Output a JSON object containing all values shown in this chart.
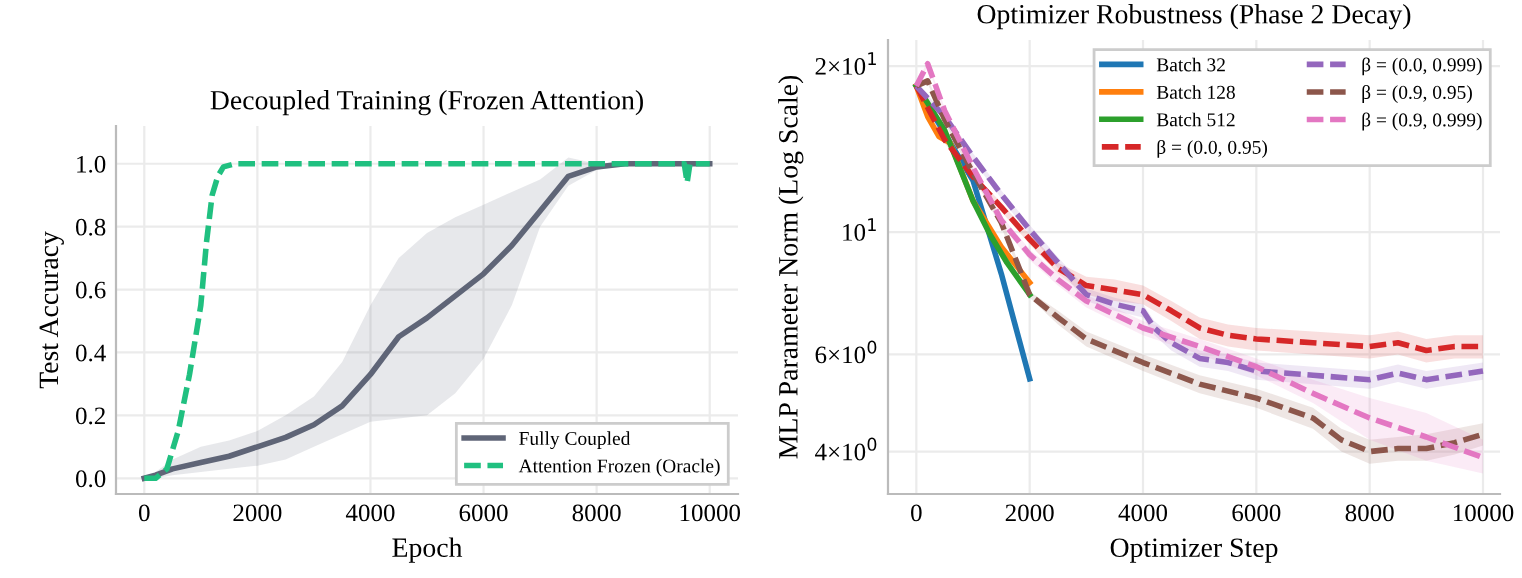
{
  "chart_data": [
    {
      "type": "line",
      "title": "Decoupled Training (Frozen Attention)",
      "xlabel": "Epoch",
      "ylabel": "Test Accuracy",
      "xlim": [
        -500,
        10500
      ],
      "xticks": [
        0,
        2000,
        4000,
        6000,
        8000,
        10000
      ],
      "ylim": [
        -0.05,
        1.12
      ],
      "yticks": [
        {
          "value": 0,
          "label": "0.0"
        },
        0.2,
        0.4,
        0.6,
        0.8,
        {
          "value": 1,
          "label": "1.0"
        }
      ],
      "grid": true,
      "legend": "bottom right",
      "series": [
        {
          "name": "Fully Coupled",
          "color": "#5f6577",
          "line_style": "solid",
          "x": [
            0,
            200,
            500,
            1000,
            1500,
            2000,
            2500,
            3000,
            3500,
            4000,
            4500,
            5000,
            5500,
            6000,
            6500,
            7000,
            7500,
            8000,
            8500,
            9000,
            10000
          ],
          "values": [
            0.0,
            0.01,
            0.03,
            0.05,
            0.07,
            0.1,
            0.13,
            0.17,
            0.23,
            0.33,
            0.45,
            0.51,
            0.58,
            0.65,
            0.74,
            0.85,
            0.96,
            0.99,
            1.0,
            1.0,
            1.0
          ],
          "lower": [
            0.0,
            0.0,
            0.01,
            0.02,
            0.03,
            0.04,
            0.06,
            0.1,
            0.14,
            0.18,
            0.19,
            0.2,
            0.27,
            0.38,
            0.55,
            0.8,
            0.93,
            0.98,
            1.0,
            1.0,
            1.0
          ],
          "upper": [
            0.0,
            0.02,
            0.06,
            0.1,
            0.12,
            0.15,
            0.2,
            0.26,
            0.37,
            0.55,
            0.7,
            0.78,
            0.83,
            0.87,
            0.91,
            0.95,
            1.02,
            1.0,
            1.0,
            1.0,
            1.0
          ]
        },
        {
          "name": "Attention Frozen (Oracle)",
          "color": "#20c080",
          "line_style": "dashed",
          "x": [
            0,
            200,
            400,
            600,
            800,
            1000,
            1100,
            1200,
            1300,
            1400,
            1600,
            9550,
            9600,
            9650,
            10000
          ],
          "values": [
            0.0,
            0.0,
            0.03,
            0.15,
            0.33,
            0.55,
            0.75,
            0.9,
            0.96,
            0.99,
            1.0,
            1.0,
            0.94,
            1.0,
            1.0
          ]
        }
      ]
    },
    {
      "type": "line",
      "title": "Optimizer Robustness (Phase 2 Decay)",
      "xlabel": "Optimizer Step",
      "ylabel": "MLP Parameter Norm (Log Scale)",
      "log": "y",
      "xlim": [
        -500,
        10300
      ],
      "xticks": [
        0,
        2000,
        4000,
        6000,
        8000,
        10000
      ],
      "ylim": [
        3.35,
        22.3
      ],
      "yticks": [
        {
          "value": 4,
          "label": "4×10$^{0}$"
        },
        {
          "value": 6,
          "label": "6×10$^{0}$"
        },
        {
          "value": 10,
          "label": "10$^{1}$"
        },
        {
          "value": 20,
          "label": "2×10$^{1}$"
        }
      ],
      "grid": true,
      "legend": "top right",
      "series": [
        {
          "name": "Batch 32",
          "color": "#1f77b4",
          "line_style": "solid",
          "x": [
            0,
            1000,
            1500,
            2000
          ],
          "values": [
            18.4,
            12.4,
            8.4,
            5.42
          ]
        },
        {
          "name": "Batch 128",
          "color": "#ff7f0e",
          "line_style": "solid",
          "x": [
            0,
            200,
            400,
            600,
            1000,
            1500,
            2000
          ],
          "values": [
            18.4,
            16.2,
            14.9,
            14.5,
            11.4,
            9.4,
            8.1
          ]
        },
        {
          "name": "Batch 512",
          "color": "#2ca02c",
          "line_style": "solid",
          "x": [
            0,
            100,
            500,
            1000,
            1300,
            1600,
            2000
          ],
          "values": [
            18.4,
            17.8,
            15.3,
            11.4,
            9.9,
            8.8,
            7.7
          ]
        },
        {
          "name": "β = (0.0, 0.95)",
          "color": "#d62728",
          "line_style": "dashed",
          "x": [
            0,
            500,
            1000,
            1500,
            2000,
            2500,
            3000,
            3500,
            4000,
            4500,
            5000,
            5500,
            6000,
            7000,
            8000,
            8500,
            9000,
            9500,
            10000
          ],
          "values": [
            18.4,
            14.7,
            12.6,
            11.1,
            9.7,
            8.6,
            8.0,
            7.85,
            7.7,
            7.2,
            6.7,
            6.5,
            6.4,
            6.3,
            6.2,
            6.3,
            6.1,
            6.2,
            6.2
          ],
          "lower": [
            18.2,
            14.5,
            12.4,
            10.9,
            9.5,
            8.4,
            7.7,
            7.5,
            7.4,
            6.9,
            6.4,
            6.2,
            6.1,
            6.0,
            5.9,
            6.0,
            5.8,
            5.9,
            5.9
          ],
          "upper": [
            18.6,
            14.9,
            12.8,
            11.3,
            9.9,
            8.8,
            8.3,
            8.2,
            8.0,
            7.5,
            7.0,
            6.8,
            6.7,
            6.6,
            6.5,
            6.6,
            6.4,
            6.5,
            6.5
          ]
        },
        {
          "name": "β = (0.0, 0.999)",
          "color": "#9467bd",
          "line_style": "dashed",
          "x": [
            0,
            500,
            1000,
            1500,
            2000,
            2500,
            3000,
            3500,
            4000,
            4200,
            4500,
            5000,
            5500,
            6000,
            7000,
            8000,
            8500,
            9000,
            10000
          ],
          "values": [
            18.4,
            16.2,
            13.7,
            11.7,
            10.1,
            8.8,
            7.7,
            7.4,
            7.2,
            6.7,
            6.3,
            5.9,
            5.8,
            5.6,
            5.5,
            5.4,
            5.55,
            5.4,
            5.6
          ],
          "lower": [
            18.2,
            16.0,
            13.5,
            11.5,
            9.9,
            8.6,
            7.5,
            7.2,
            7.0,
            6.5,
            6.1,
            5.7,
            5.6,
            5.4,
            5.3,
            5.2,
            5.35,
            5.2,
            5.4
          ],
          "upper": [
            18.6,
            16.4,
            13.9,
            11.9,
            10.3,
            9.0,
            7.9,
            7.6,
            7.4,
            6.9,
            6.5,
            6.1,
            6.0,
            5.8,
            5.7,
            5.6,
            5.75,
            5.6,
            5.8
          ]
        },
        {
          "name": "β = (0.9, 0.95)",
          "color": "#8c564b",
          "line_style": "dashed",
          "x": [
            0,
            200,
            500,
            1000,
            1500,
            2000,
            2500,
            3000,
            4000,
            5000,
            6000,
            7000,
            7500,
            8000,
            8500,
            9000,
            9500,
            10000
          ],
          "values": [
            18.4,
            18.8,
            16.0,
            12.8,
            10.4,
            7.7,
            7.0,
            6.4,
            5.8,
            5.3,
            5.0,
            4.6,
            4.2,
            4.0,
            4.05,
            4.05,
            4.15,
            4.3
          ],
          "lower": [
            18.2,
            18.6,
            15.8,
            12.6,
            10.2,
            7.6,
            6.8,
            6.2,
            5.6,
            5.1,
            4.8,
            4.4,
            4.0,
            3.8,
            3.85,
            3.85,
            3.95,
            4.1
          ],
          "upper": [
            18.6,
            19.0,
            16.2,
            13.0,
            10.6,
            7.8,
            7.2,
            6.6,
            6.0,
            5.5,
            5.2,
            4.8,
            4.4,
            4.2,
            4.25,
            4.3,
            4.4,
            4.5
          ]
        },
        {
          "name": "β = (0.9, 0.999)",
          "color": "#e377c2",
          "line_style": "dashed",
          "x": [
            0,
            200,
            500,
            1000,
            1500,
            2000,
            2500,
            3000,
            4000,
            5000,
            6000,
            7000,
            8000,
            9000,
            10000
          ],
          "values": [
            18.4,
            20.2,
            16.6,
            13.1,
            10.5,
            9.1,
            8.2,
            7.5,
            6.7,
            6.2,
            5.7,
            5.1,
            4.6,
            4.25,
            3.9
          ],
          "lower": [
            18.2,
            20.0,
            16.4,
            12.9,
            10.3,
            8.9,
            8.0,
            7.3,
            6.5,
            6.0,
            5.5,
            4.9,
            4.2,
            3.85,
            3.65
          ],
          "upper": [
            18.6,
            20.4,
            16.8,
            13.3,
            10.7,
            9.3,
            8.4,
            7.7,
            6.9,
            6.4,
            5.9,
            5.4,
            5.0,
            4.7,
            4.2
          ]
        }
      ]
    }
  ]
}
